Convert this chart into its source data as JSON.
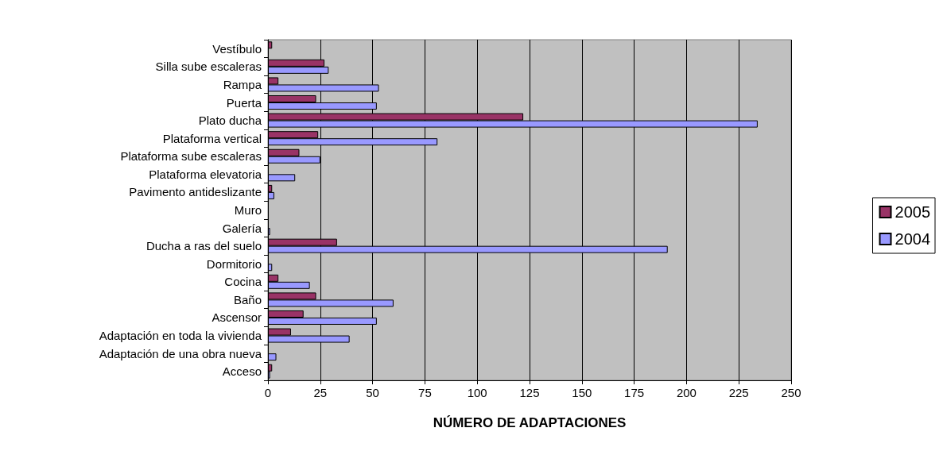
{
  "chart_data": {
    "type": "bar",
    "orientation": "horizontal",
    "xlabel": "NÚMERO DE ADAPTACIONES",
    "categories": [
      "Vestíbulo",
      "Silla sube escaleras",
      "Rampa",
      "Puerta",
      "Plato ducha",
      "Plataforma vertical",
      "Plataforma sube escaleras",
      "Plataforma elevatoria",
      "Pavimento antideslizante",
      "Muro",
      "Galería",
      "Ducha a ras del suelo",
      "Dormitorio",
      "Cocina",
      "Baño",
      "Ascensor",
      "Adaptación en toda la vivienda",
      "Adaptación de una obra nueva",
      "Acceso"
    ],
    "series": [
      {
        "name": "2005",
        "color": "#993366",
        "values": [
          2,
          27,
          5,
          23,
          122,
          24,
          15,
          null,
          2,
          null,
          null,
          33,
          null,
          5,
          23,
          17,
          11,
          null,
          2
        ]
      },
      {
        "name": "2004",
        "color": "#9999ff",
        "values": [
          null,
          29,
          53,
          52,
          234,
          81,
          25,
          13,
          3,
          null,
          1,
          191,
          2,
          20,
          60,
          52,
          39,
          4,
          1
        ]
      }
    ],
    "xlim": [
      0,
      250
    ],
    "xticks": [
      0,
      25,
      50,
      75,
      100,
      125,
      150,
      175,
      200,
      225,
      250
    ],
    "grid": "x",
    "legend": "right"
  }
}
